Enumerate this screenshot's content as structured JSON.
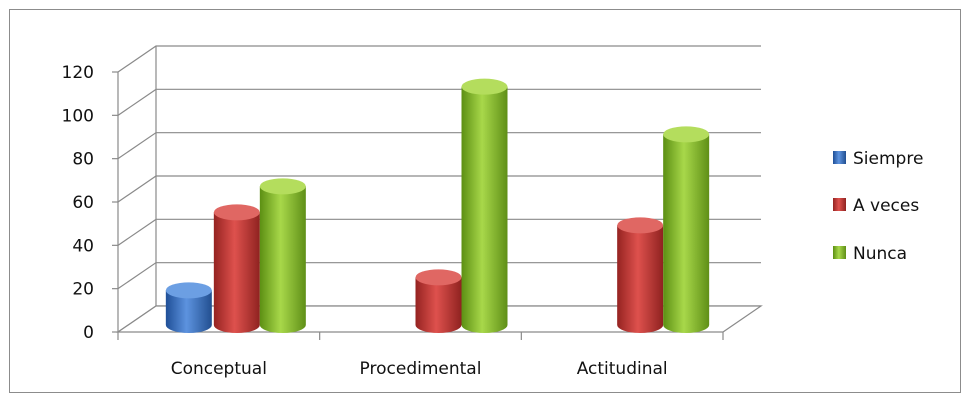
{
  "chart_data": {
    "type": "bar",
    "categories": [
      "Conceptual",
      "Procedimental",
      "Actitudinal"
    ],
    "series": [
      {
        "name": "Siempre",
        "values": [
          16,
          0,
          0
        ],
        "color": "#3b73c4"
      },
      {
        "name": "A veces",
        "values": [
          52,
          22,
          46
        ],
        "color": "#c93431"
      },
      {
        "name": "Nunca",
        "values": [
          64,
          110,
          88
        ],
        "color": "#8dbb2c"
      }
    ],
    "yticks": [
      "0",
      "20",
      "40",
      "60",
      "80",
      "100",
      "120"
    ],
    "ylim": [
      0,
      120
    ],
    "grid": true,
    "legend": "right"
  }
}
